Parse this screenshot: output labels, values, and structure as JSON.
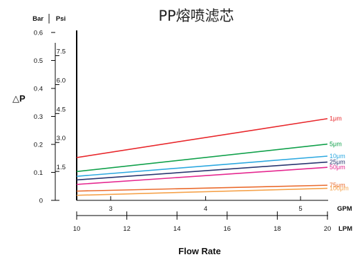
{
  "chart_data": {
    "type": "line",
    "title": "PP熔喷滤芯",
    "ylabel": "△P",
    "xlabel": "Flow Rate",
    "y_units": [
      "Bar",
      "Psi"
    ],
    "x_units": [
      "GPM",
      "LPM"
    ],
    "y_bar_ticks": [
      0,
      0.1,
      0.2,
      0.3,
      0.4,
      0.5,
      0.6
    ],
    "y_psi_ticks": [
      0,
      1.5,
      3.0,
      4.5,
      6.0,
      7.5
    ],
    "y_psi_labels": [
      "0",
      "1.5",
      "3.0",
      "4.5",
      "6.0",
      "7.5"
    ],
    "x_gpm_ticks": [
      3,
      4,
      5
    ],
    "x_lpm_ticks": [
      10,
      12,
      14,
      16,
      18,
      20
    ],
    "xlim": [
      10,
      20
    ],
    "ylim": [
      0,
      0.6
    ],
    "series": [
      {
        "name": "1μm",
        "color": "#e8262a",
        "x": [
          10,
          20
        ],
        "y": [
          0.153,
          0.292
        ]
      },
      {
        "name": "5μm",
        "color": "#0fa04a",
        "x": [
          10,
          20
        ],
        "y": [
          0.103,
          0.201
        ]
      },
      {
        "name": "10μm",
        "color": "#2ba8e0",
        "x": [
          10,
          20
        ],
        "y": [
          0.086,
          0.158
        ]
      },
      {
        "name": "25μm",
        "color": "#27346f",
        "x": [
          10,
          20
        ],
        "y": [
          0.073,
          0.137
        ]
      },
      {
        "name": "50μm",
        "color": "#e5268f",
        "x": [
          10,
          20
        ],
        "y": [
          0.057,
          0.118
        ]
      },
      {
        "name": "75μm",
        "color": "#ea6a2c",
        "x": [
          10,
          20
        ],
        "y": [
          0.033,
          0.054
        ]
      },
      {
        "name": "100μm",
        "color": "#f5a24a",
        "x": [
          10,
          20
        ],
        "y": [
          0.018,
          0.043
        ]
      }
    ]
  }
}
